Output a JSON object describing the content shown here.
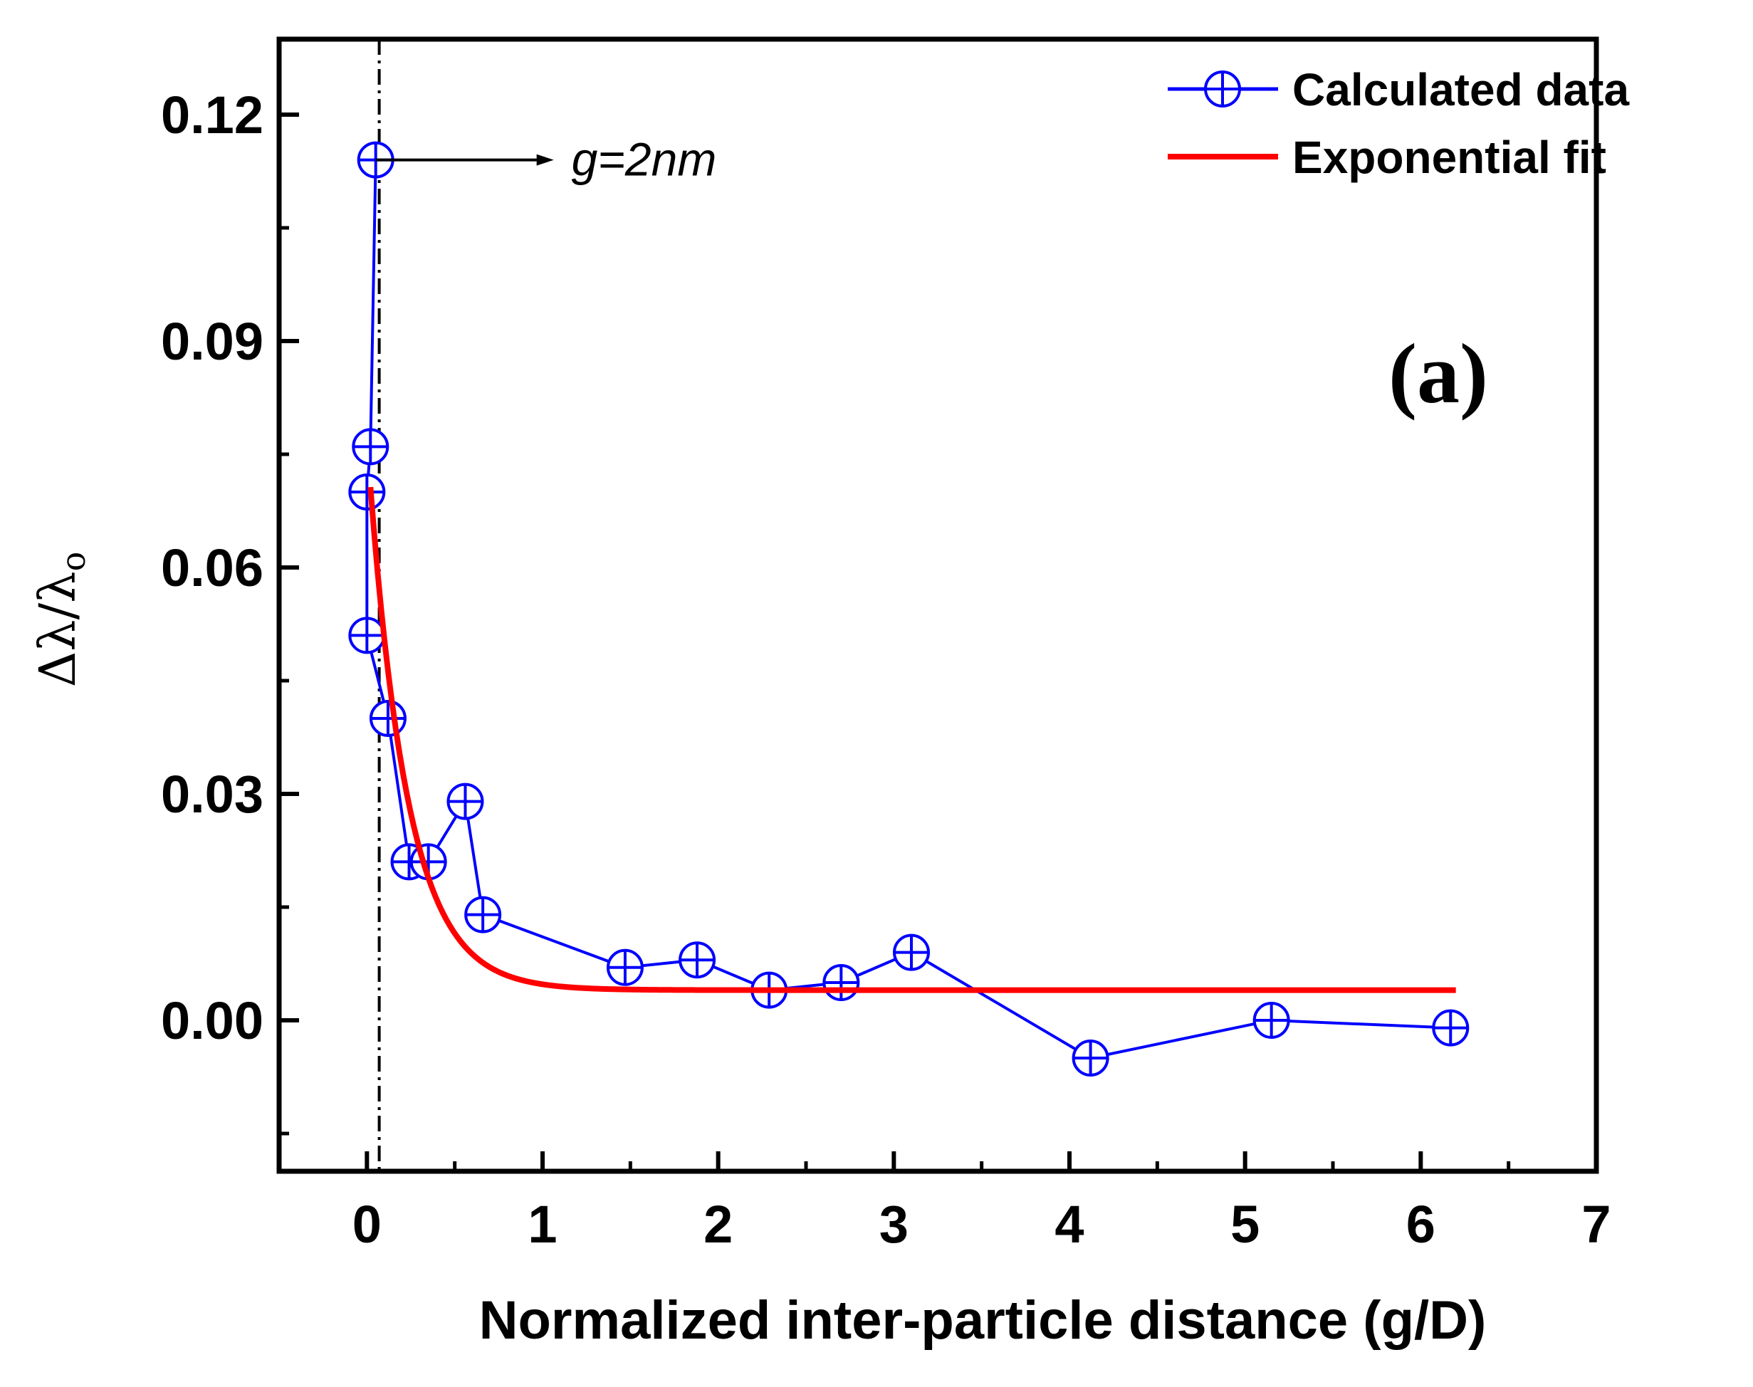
{
  "chart_data": {
    "type": "line",
    "xlabel": "Normalized inter-particle distance (g/D)",
    "ylabel": "Δλ/λ",
    "ylabel_subscript": "o",
    "xlim": [
      -0.5,
      7
    ],
    "ylim": [
      -0.02,
      0.13
    ],
    "x_ticks": [
      0,
      1,
      2,
      3,
      4,
      5,
      6,
      7
    ],
    "x_tick_labels": [
      "0",
      "1",
      "2",
      "3",
      "4",
      "5",
      "6",
      "7"
    ],
    "y_ticks": [
      0.0,
      0.03,
      0.06,
      0.09,
      0.12
    ],
    "y_tick_labels": [
      "0.00",
      "0.03",
      "0.06",
      "0.09",
      "0.12"
    ],
    "series": [
      {
        "name": "Calculated data",
        "color": "#0000ff",
        "marker": "circle-plus",
        "x": [
          0.05,
          0.02,
          0.0,
          0.0,
          0.12,
          0.24,
          0.35,
          0.56,
          0.66,
          1.47,
          1.88,
          2.29,
          2.7,
          3.1,
          4.12,
          5.15,
          6.17
        ],
        "y": [
          0.114,
          0.076,
          0.07,
          0.051,
          0.04,
          0.021,
          0.021,
          0.029,
          0.014,
          0.007,
          0.008,
          0.004,
          0.005,
          0.009,
          -0.005,
          0.0,
          -0.001
        ]
      },
      {
        "name": "Exponential fit",
        "color": "#ff0000",
        "type": "line",
        "model": "y = 0.004 + 0.073*exp(-x/0.22)",
        "x_range": [
          0.02,
          6.2
        ]
      }
    ],
    "annotations": [
      {
        "text": "g=2nm",
        "points_to": {
          "x": 0.05,
          "y": 0.114
        }
      },
      {
        "text": "(a)"
      }
    ],
    "reference_line": {
      "type": "vertical",
      "x": 0.07,
      "style": "dash-dot"
    },
    "legend": {
      "position": "top-right",
      "entries": [
        "Calculated data",
        "Exponential fit"
      ]
    }
  }
}
